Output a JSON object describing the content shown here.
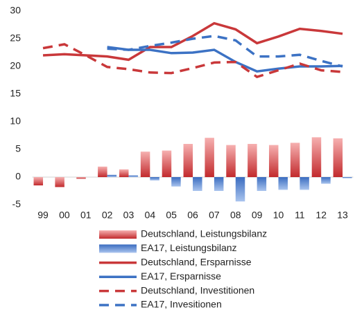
{
  "chart_data": {
    "type": "bar",
    "categories": [
      "99",
      "00",
      "01",
      "02",
      "03",
      "04",
      "05",
      "06",
      "07",
      "08",
      "09",
      "10",
      "11",
      "12",
      "13"
    ],
    "ylim": [
      -5,
      30
    ],
    "yticks": [
      -5,
      0,
      5,
      10,
      15,
      20,
      25,
      30
    ],
    "series": [
      {
        "name": "Deutschland, Leistungsbilanz",
        "type": "bar",
        "color": "#c9383a",
        "values": [
          -1.5,
          -1.8,
          -0.3,
          1.9,
          1.4,
          4.6,
          4.8,
          6.0,
          7.1,
          5.8,
          6.0,
          5.8,
          6.2,
          7.2,
          7.0
        ]
      },
      {
        "name": "EA17, Leistungsbilanz",
        "type": "bar",
        "color": "#3c72c4",
        "values": [
          null,
          null,
          null,
          0.4,
          0.3,
          -0.6,
          -1.7,
          -2.5,
          -2.5,
          -4.4,
          -2.5,
          -2.3,
          -2.3,
          -1.2,
          -0.2
        ]
      },
      {
        "name": "Deutschland, Ersparnisse",
        "type": "line",
        "color": "#c9383a",
        "dashed": false,
        "values": [
          22.0,
          22.2,
          22.0,
          21.8,
          21.2,
          23.5,
          23.5,
          25.5,
          27.8,
          26.7,
          24.2,
          25.4,
          26.8,
          26.4,
          25.9
        ]
      },
      {
        "name": "EA17, Ersparnisse",
        "type": "line",
        "color": "#3c72c4",
        "dashed": false,
        "values": [
          null,
          null,
          null,
          23.5,
          23.0,
          23.0,
          22.4,
          22.5,
          23.0,
          20.8,
          19.1,
          19.6,
          20.0,
          20.0,
          20.1
        ]
      },
      {
        "name": "Deutschland, Investitionen",
        "type": "line",
        "color": "#c9383a",
        "dashed": true,
        "values": [
          23.3,
          24.0,
          22.0,
          19.9,
          19.5,
          18.9,
          18.8,
          19.7,
          20.7,
          20.8,
          18.1,
          19.3,
          20.5,
          19.3,
          19.0
        ]
      },
      {
        "name": "EA17, Invesitionen",
        "type": "line",
        "color": "#3c72c4",
        "dashed": true,
        "values": [
          null,
          null,
          null,
          23.2,
          23.0,
          23.7,
          24.3,
          25.0,
          25.5,
          24.7,
          21.8,
          21.8,
          22.1,
          21.0,
          20.0
        ]
      }
    ]
  }
}
